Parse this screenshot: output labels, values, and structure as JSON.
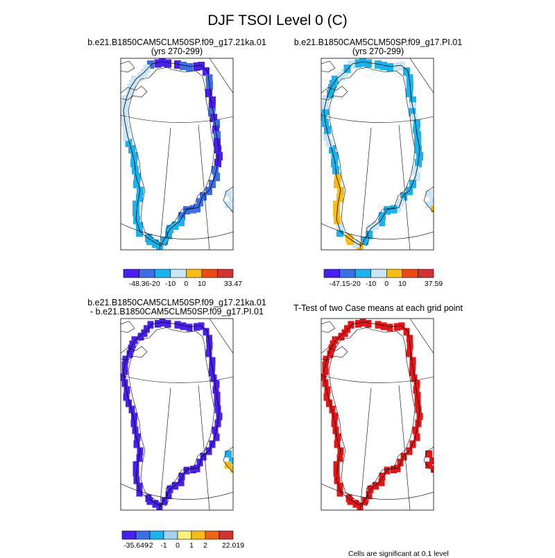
{
  "title": "DJF TSOI Level 0 (C)",
  "panels": [
    {
      "id": "p1",
      "title": [
        "b.e21.B1850CAM5CLM50SP.f09_g17.21ka.01",
        "(yrs 270-299)"
      ]
    },
    {
      "id": "p2",
      "title": [
        "b.e21.B1850CAM5CLM50SP.f09_g17.PI.01",
        "(yrs 270-299)"
      ]
    },
    {
      "id": "p3",
      "title": [
        "b.e21.B1850CAM5CLM50SP.f09_g17.21ka.01",
        "- b.e21.B1850CAM5CLM50SP.f09_g17.PI.01"
      ]
    },
    {
      "id": "p4",
      "title": [
        "T-Test of two Case means at each grid point"
      ]
    }
  ],
  "footnote": "Cells are significant at 0.1 level",
  "chart_data": [
    {
      "type": "heatmap",
      "panel": "p1",
      "title": "b.e21.B1850CAM5CLM50SP.f09_g17.21ka.01 (yrs 270-299)",
      "colorbar": {
        "colors": [
          "#4a1ef0",
          "#3c6ee8",
          "#19b4f0",
          "#c8e6f8",
          "#f7bd14",
          "#f04a14",
          "#d23232"
        ],
        "tick_labels": [
          "-48.36",
          "-20",
          "-10",
          "0",
          "10",
          "33.47"
        ],
        "min": -48.36,
        "max": 33.47
      }
    },
    {
      "type": "heatmap",
      "panel": "p2",
      "title": "b.e21.B1850CAM5CLM50SP.f09_g17.PI.01 (yrs 270-299)",
      "colorbar": {
        "colors": [
          "#4a1ef0",
          "#3c6ee8",
          "#19b4f0",
          "#c8e6f8",
          "#f7bd14",
          "#f04a14",
          "#d23232"
        ],
        "tick_labels": [
          "-47.15",
          "-20",
          "-10",
          "0",
          "10",
          "37.59"
        ],
        "min": -47.15,
        "max": 37.59
      }
    },
    {
      "type": "heatmap",
      "panel": "p3",
      "title": "b.e21.B1850CAM5CLM50SP.f09_g17.21ka.01 - b.e21.B1850CAM5CLM50SP.f09_g17.PI.01",
      "colorbar": {
        "colors": [
          "#4a1ef0",
          "#3c6ee8",
          "#19b4f0",
          "#a0d2f0",
          "#faf078",
          "#f7bd14",
          "#f06414",
          "#d23232"
        ],
        "tick_labels": [
          "-35.649",
          "-2",
          "-1",
          "0",
          "1",
          "2",
          "22.019"
        ],
        "min": -35.649,
        "max": 22.019
      }
    },
    {
      "type": "heatmap",
      "panel": "p4",
      "title": "T-Test of two Case means at each grid point",
      "significant_color": "#e61414"
    }
  ],
  "colors": {
    "fill_dark_blue": "#4a1ef0",
    "fill_mid_blue": "#3c6ee8",
    "fill_light_blue": "#19b4f0",
    "fill_pale_blue": "#c8e6f8",
    "fill_orange": "#f7bd14",
    "fill_red": "#e61414"
  }
}
